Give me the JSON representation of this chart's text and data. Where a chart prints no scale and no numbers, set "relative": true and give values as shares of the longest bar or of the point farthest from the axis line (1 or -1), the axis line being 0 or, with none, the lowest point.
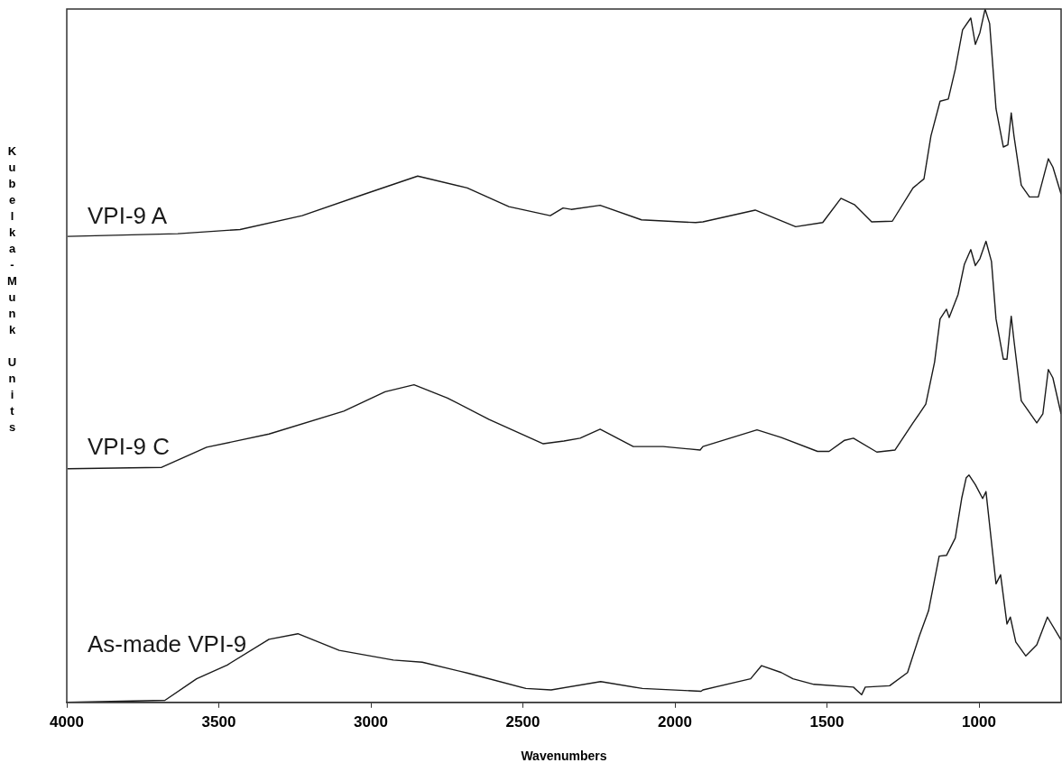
{
  "chart_data": {
    "type": "line",
    "xlabel": "Wavenumbers",
    "ylabel": "Kubelka-Munk Units",
    "relative": true,
    "xlim": [
      4000,
      730
    ],
    "xticks": [
      4000,
      3500,
      3000,
      2500,
      2000,
      1500,
      1000
    ],
    "grid": false,
    "legend": false,
    "marker": "none",
    "line_style": "solid",
    "series": [
      {
        "name": "VPI-9 A",
        "color": "#1a1a1a",
        "x": [
          3997,
          3635,
          3430,
          3226,
          3021,
          2846,
          2683,
          2546,
          2410,
          2368,
          2341,
          2246,
          2110,
          1932,
          1908,
          1736,
          1603,
          1514,
          1454,
          1410,
          1353,
          1285,
          1217,
          1181,
          1158,
          1128,
          1101,
          1078,
          1054,
          1027,
          1012,
          997,
          980,
          965,
          944,
          920,
          905,
          894,
          885,
          861,
          834,
          805,
          772,
          757,
          730
        ],
        "values": [
          0.672,
          0.676,
          0.682,
          0.702,
          0.733,
          0.759,
          0.742,
          0.715,
          0.702,
          0.713,
          0.711,
          0.717,
          0.696,
          0.692,
          0.693,
          0.71,
          0.686,
          0.692,
          0.727,
          0.718,
          0.693,
          0.694,
          0.742,
          0.755,
          0.817,
          0.867,
          0.87,
          0.913,
          0.97,
          0.987,
          0.949,
          0.966,
          1.0,
          0.979,
          0.856,
          0.801,
          0.804,
          0.85,
          0.817,
          0.746,
          0.729,
          0.729,
          0.784,
          0.772,
          0.733
        ]
      },
      {
        "name": "VPI-9 C",
        "color": "#1a1a1a",
        "x": [
          3997,
          3688,
          3540,
          3335,
          3089,
          2953,
          2858,
          2748,
          2611,
          2433,
          2365,
          2312,
          2246,
          2137,
          2039,
          1917,
          1908,
          1730,
          1650,
          1531,
          1493,
          1442,
          1413,
          1336,
          1276,
          1217,
          1175,
          1146,
          1128,
          1107,
          1098,
          1069,
          1048,
          1027,
          1012,
          997,
          977,
          959,
          944,
          920,
          908,
          894,
          885,
          861,
          810,
          790,
          772,
          757,
          730
        ],
        "values": [
          0.337,
          0.339,
          0.368,
          0.387,
          0.42,
          0.448,
          0.458,
          0.439,
          0.408,
          0.373,
          0.377,
          0.381,
          0.394,
          0.369,
          0.369,
          0.364,
          0.369,
          0.393,
          0.382,
          0.362,
          0.362,
          0.378,
          0.381,
          0.361,
          0.364,
          0.403,
          0.43,
          0.491,
          0.553,
          0.567,
          0.555,
          0.588,
          0.632,
          0.653,
          0.63,
          0.64,
          0.665,
          0.636,
          0.553,
          0.495,
          0.495,
          0.557,
          0.522,
          0.435,
          0.403,
          0.416,
          0.48,
          0.468,
          0.416
        ]
      },
      {
        "name": "As-made VPI-9",
        "color": "#1a1a1a",
        "x": [
          3997,
          3677,
          3573,
          3472,
          3335,
          3240,
          3104,
          2926,
          2831,
          2680,
          2490,
          2407,
          2244,
          2107,
          1914,
          1908,
          1751,
          1715,
          1650,
          1612,
          1543,
          1413,
          1386,
          1374,
          1294,
          1235,
          1196,
          1166,
          1131,
          1107,
          1078,
          1057,
          1042,
          1033,
          1012,
          988,
          977,
          944,
          929,
          908,
          897,
          879,
          846,
          810,
          775,
          730
        ],
        "values": [
          0,
          0.003,
          0.034,
          0.054,
          0.091,
          0.099,
          0.075,
          0.061,
          0.058,
          0.042,
          0.02,
          0.018,
          0.03,
          0.02,
          0.016,
          0.018,
          0.034,
          0.053,
          0.043,
          0.034,
          0.026,
          0.022,
          0.011,
          0.022,
          0.024,
          0.043,
          0.096,
          0.132,
          0.211,
          0.212,
          0.237,
          0.294,
          0.324,
          0.328,
          0.314,
          0.294,
          0.304,
          0.171,
          0.184,
          0.113,
          0.123,
          0.087,
          0.067,
          0.083,
          0.123,
          0.09
        ]
      }
    ]
  }
}
